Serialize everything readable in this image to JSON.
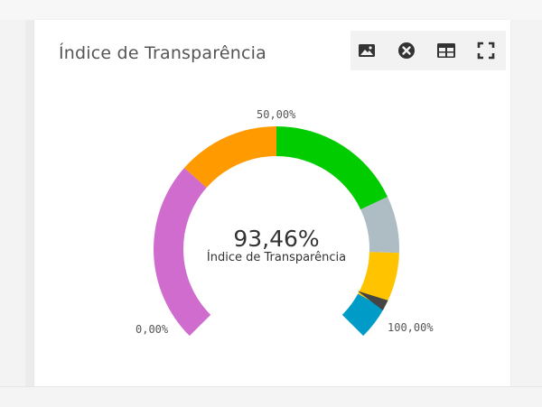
{
  "panel": {
    "title": "Índice de Transparência"
  },
  "toolbar": {
    "items": [
      {
        "icon": "image-icon"
      },
      {
        "icon": "close-circle-icon"
      },
      {
        "icon": "table-icon"
      },
      {
        "icon": "fullscreen-icon"
      }
    ],
    "icon_color": "#333333"
  },
  "chart_data": {
    "type": "gauge",
    "value": 93.46,
    "value_text": "93,46%",
    "caption": "Índice de Transparência",
    "min": 0,
    "max": 100,
    "min_label": "0,00%",
    "mid_label": "50,00%",
    "max_label": "100,00%",
    "segments": [
      {
        "from": 0,
        "to": 32,
        "color": "#d16ccf"
      },
      {
        "from": 32,
        "to": 50,
        "color": "#ff9a00"
      },
      {
        "from": 50,
        "to": 74,
        "color": "#00cc00"
      },
      {
        "from": 74,
        "to": 84,
        "color": "#aebcc3"
      },
      {
        "from": 84,
        "to": 94,
        "color": "#ffc300"
      },
      {
        "from": 94,
        "to": 100,
        "color": "#009bc6"
      }
    ],
    "needle_color": "#444444"
  }
}
